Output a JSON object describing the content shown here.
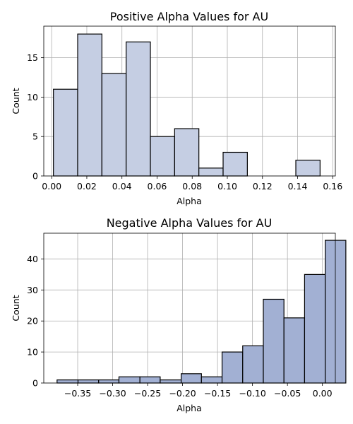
{
  "chart_data": [
    {
      "type": "bar",
      "title": "Positive Alpha Values for AU",
      "xlabel": "Alpha",
      "ylabel": "Count",
      "color": "#c5cee3",
      "xlim": [
        -0.0045,
        0.1615
      ],
      "ylim": [
        0,
        19
      ],
      "xticks": [
        0.0,
        0.02,
        0.04,
        0.06,
        0.08,
        0.1,
        0.12,
        0.14,
        0.16
      ],
      "xtick_labels": [
        "0.00",
        "0.02",
        "0.04",
        "0.06",
        "0.08",
        "0.10",
        "0.12",
        "0.14",
        "0.16"
      ],
      "yticks": [
        0,
        5,
        10,
        15
      ],
      "yticks_labels": [
        "0",
        "5",
        "10",
        "15"
      ],
      "bins": [
        {
          "x0": 0.001,
          "x1": 0.0148,
          "count": 11
        },
        {
          "x0": 0.0148,
          "x1": 0.0286,
          "count": 18
        },
        {
          "x0": 0.0286,
          "x1": 0.0424,
          "count": 13
        },
        {
          "x0": 0.0424,
          "x1": 0.0562,
          "count": 17
        },
        {
          "x0": 0.0562,
          "x1": 0.07,
          "count": 5
        },
        {
          "x0": 0.07,
          "x1": 0.0838,
          "count": 6
        },
        {
          "x0": 0.0838,
          "x1": 0.0976,
          "count": 1
        },
        {
          "x0": 0.0976,
          "x1": 0.1114,
          "count": 3
        },
        {
          "x0": 0.1114,
          "x1": 0.1252,
          "count": 0
        },
        {
          "x0": 0.1252,
          "x1": 0.139,
          "count": 0
        },
        {
          "x0": 0.139,
          "x1": 0.1528,
          "count": 2
        }
      ],
      "grid": true
    },
    {
      "type": "bar",
      "title": "Negative Alpha Values for AU",
      "xlabel": "Alpha",
      "ylabel": "Count",
      "color": "#a2b0d3",
      "xlim": [
        -0.3985,
        0.0185
      ],
      "ylim": [
        0,
        48.3
      ],
      "xticks": [
        -0.35,
        -0.3,
        -0.25,
        -0.2,
        -0.15,
        -0.1,
        -0.05,
        0.0
      ],
      "xtick_labels": [
        "−0.35",
        "−0.30",
        "−0.25",
        "−0.20",
        "−0.15",
        "−0.10",
        "−0.05",
        "0.00"
      ],
      "yticks": [
        0,
        10,
        20,
        30,
        40
      ],
      "yticks_labels": [
        "0",
        "10",
        "20",
        "30",
        "40"
      ],
      "bins": [
        {
          "x0": -0.3795,
          "x1": -0.3495,
          "count": 1
        },
        {
          "x0": -0.3495,
          "x1": -0.32,
          "count": 1
        },
        {
          "x0": -0.32,
          "x1": -0.291,
          "count": 1
        },
        {
          "x0": -0.291,
          "x1": -0.261,
          "count": 2
        },
        {
          "x0": -0.261,
          "x1": -0.232,
          "count": 2
        },
        {
          "x0": -0.232,
          "x1": -0.202,
          "count": 1
        },
        {
          "x0": -0.202,
          "x1": -0.173,
          "count": 3
        },
        {
          "x0": -0.173,
          "x1": -0.1435,
          "count": 2
        },
        {
          "x0": -0.1435,
          "x1": -0.114,
          "count": 10
        },
        {
          "x0": -0.114,
          "x1": -0.0845,
          "count": 12
        },
        {
          "x0": -0.0845,
          "x1": -0.055,
          "count": 27
        },
        {
          "x0": -0.055,
          "x1": -0.0255,
          "count": 21
        },
        {
          "x0": -0.0255,
          "x1": 0.004,
          "count": 35
        },
        {
          "x0": 0.004,
          "x1": 0.0335,
          "count": 46
        }
      ],
      "grid": true
    }
  ]
}
